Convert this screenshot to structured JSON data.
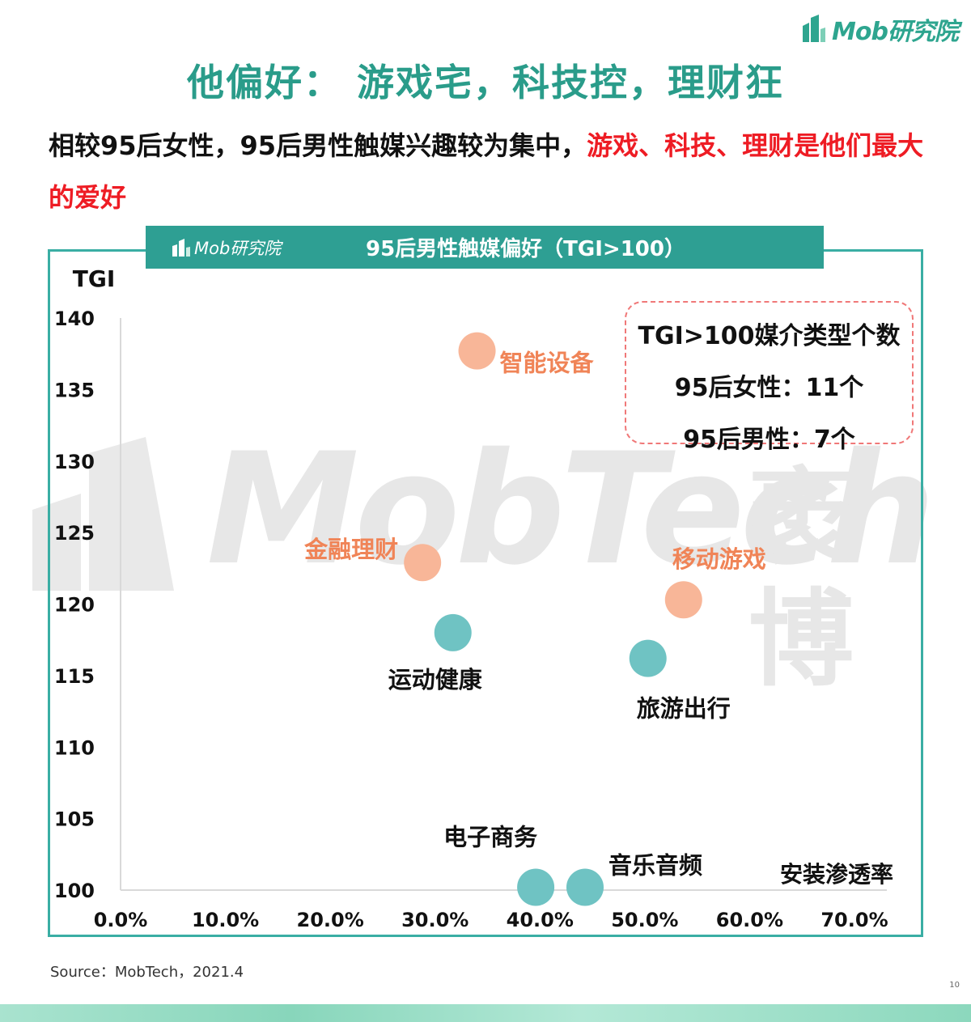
{
  "logo": {
    "text": "Mob研究院"
  },
  "title": "他偏好： 游戏宅，科技控，理财狂",
  "subtitle": {
    "normal": "相较95后女性，95后男性触媒兴趣较为集中，",
    "highlight": "游戏、科技、理财是他们最大的爱好"
  },
  "banner": {
    "logo_text": "Mob研究院",
    "title": "95后男性触媒偏好（TGI>100）"
  },
  "watermark": {
    "latin": "MobTech",
    "cn": "袤博"
  },
  "infobox": {
    "line1": "TGI>100媒介类型个数",
    "line2": "95后女性：11个",
    "line3": "95后男性：7个"
  },
  "colors": {
    "accent_teal": "#2a9c8a",
    "frame_teal": "#3aaea4",
    "highlight_red": "#ee1c24",
    "point_orange": "#f8b698",
    "label_orange": "#f08457",
    "point_teal": "#6fc3c3"
  },
  "chart_data": {
    "type": "scatter",
    "ylabel": "TGI",
    "xlabel": "安装渗透率",
    "xlim": [
      0,
      70
    ],
    "ylim": [
      100,
      140
    ],
    "x_ticks": [
      "0.0%",
      "10.0%",
      "20.0%",
      "30.0%",
      "40.0%",
      "50.0%",
      "60.0%",
      "70.0%"
    ],
    "y_ticks": [
      "100",
      "105",
      "110",
      "115",
      "120",
      "125",
      "130",
      "135",
      "140"
    ],
    "grid": false,
    "points": [
      {
        "name": "智能设备",
        "x": 34.0,
        "y": 137.7,
        "group": "highlight"
      },
      {
        "name": "金融理财",
        "x": 28.8,
        "y": 122.9,
        "group": "highlight"
      },
      {
        "name": "移动游戏",
        "x": 53.7,
        "y": 120.3,
        "group": "highlight"
      },
      {
        "name": "运动健康",
        "x": 31.7,
        "y": 118.0,
        "group": "normal"
      },
      {
        "name": "旅游出行",
        "x": 50.3,
        "y": 116.2,
        "group": "normal"
      },
      {
        "name": "电子商务",
        "x": 39.6,
        "y": 100.2,
        "group": "normal"
      },
      {
        "name": "音乐音频",
        "x": 44.3,
        "y": 100.2,
        "group": "normal"
      }
    ]
  },
  "source": "Source：MobTech，2021.4",
  "page_number": "10"
}
